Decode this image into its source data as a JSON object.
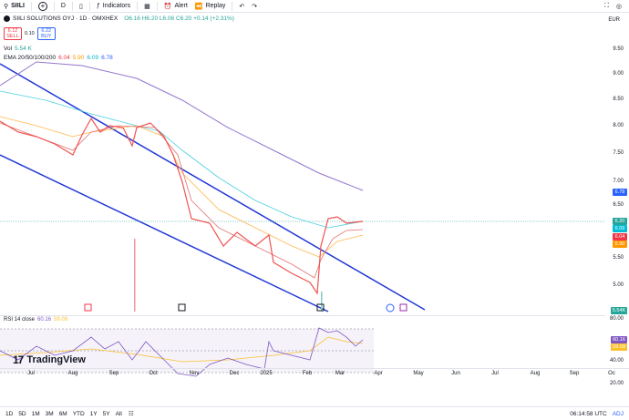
{
  "toolbar": {
    "symbol": "SIILI",
    "interval": "D",
    "indicators_label": "Indicators",
    "alert_label": "Alert",
    "replay_label": "Replay"
  },
  "legend": {
    "title": "SIILI SOLUTIONS OYJ · 1D · OMXHEX",
    "ohlc": "O6.16 H6.20 L6.06 C6.20 +0.14 (+2.31%)",
    "sell_price": "6.12",
    "sell_label": "SELL",
    "spread": "0.10",
    "buy_price": "6.22",
    "buy_label": "BUY",
    "vol_label": "Vol",
    "vol_value": "5.54 K",
    "ema_label": "EMA 20/50/100/200",
    "ema_values": [
      "6.04",
      "5.90",
      "6.09",
      "6.78"
    ]
  },
  "currency": "EUR",
  "price_axis": [
    "9.50",
    "9.00",
    "8.50",
    "8.00",
    "7.50",
    "7.00",
    "6.50",
    "6.00",
    "5.50",
    "5.00"
  ],
  "price_tags": [
    {
      "value": "6.78",
      "color": "#2962ff"
    },
    {
      "value": "6.20",
      "color": "#26a69a"
    },
    {
      "value": "6.09",
      "color": "#00bcd4"
    },
    {
      "value": "6.04",
      "color": "#f23645"
    },
    {
      "value": "5.90",
      "color": "#ff9800"
    },
    {
      "value": "5.54K",
      "color": "#26a69a"
    }
  ],
  "rsi": {
    "label": "RSI 14 close",
    "value": "60.16",
    "ma_value": "59.09",
    "axis": [
      "80.00",
      "40.00",
      "20.00"
    ],
    "tags": [
      {
        "value": "60.16",
        "color": "#7e57c2"
      },
      {
        "value": "59.09",
        "color": "#fbc02d"
      }
    ]
  },
  "time_axis": [
    "Jul",
    "Aug",
    "Sep",
    "Oct",
    "Nov",
    "Dec",
    "2025",
    "Feb",
    "Mar",
    "Apr",
    "May",
    "Jun",
    "Jul",
    "Aug",
    "Sep",
    "Oc"
  ],
  "brand": "TradingView",
  "bottom_bar": {
    "ranges": [
      "1D",
      "5D",
      "1M",
      "3M",
      "6M",
      "YTD",
      "1Y",
      "5Y",
      "All"
    ],
    "time": "06:14:58 UTC",
    "adj": "ADJ"
  },
  "chart_data": {
    "type": "line",
    "series": [
      {
        "name": "EMA 200",
        "values": [
          9.9,
          9.0,
          8.4,
          8.0,
          7.6,
          7.2,
          7.0,
          6.8
        ]
      },
      {
        "name": "Price",
        "values": [
          7.9,
          7.6,
          8.1,
          7.9,
          8.3,
          7.0,
          6.0,
          5.7,
          5.9,
          5.4,
          5.0,
          6.3,
          6.2
        ]
      }
    ],
    "ylim": [
      4.8,
      9.8
    ]
  }
}
